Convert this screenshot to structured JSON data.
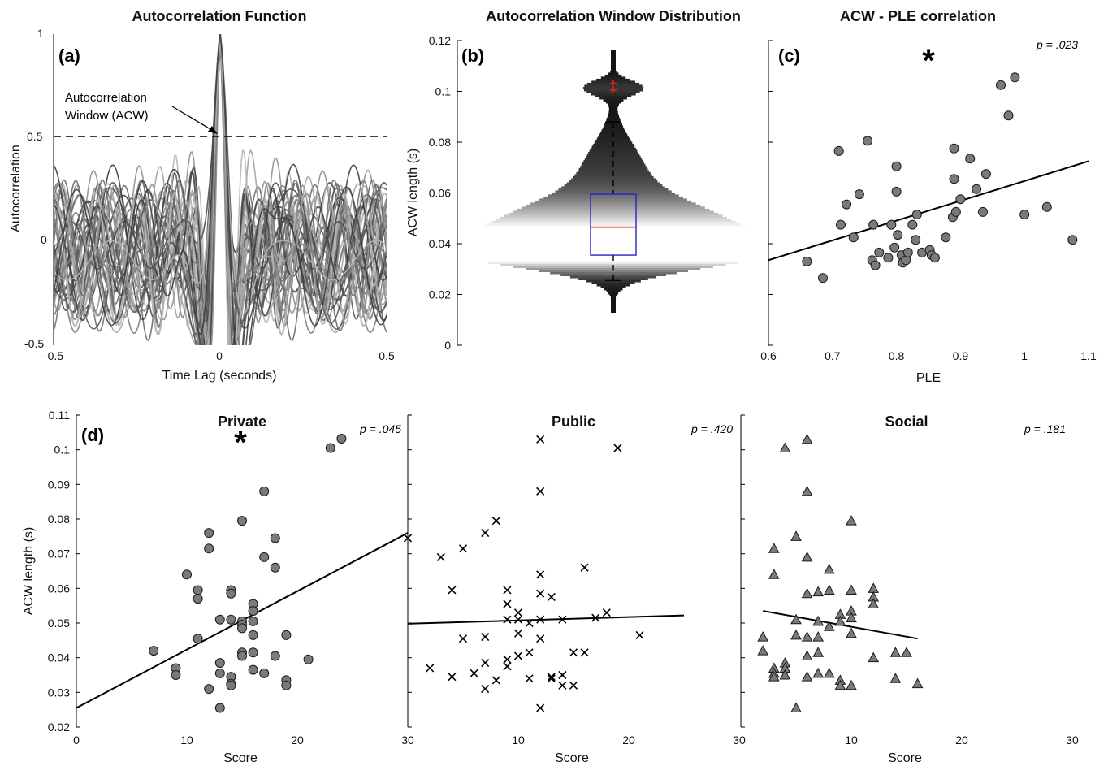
{
  "chart_data": [
    {
      "id": "a",
      "type": "line",
      "panel_label": "(a)",
      "title": "Autocorrelation Function",
      "xlabel": "Time Lag (seconds)",
      "ylabel": "Autocorrelation",
      "xlim": [
        -0.5,
        0.5
      ],
      "ylim": [
        -0.5,
        1
      ],
      "xticks": [
        "-0.5",
        "0",
        "0.5"
      ],
      "yticks": [
        "-0.5",
        "0",
        "0.5",
        "1"
      ],
      "threshold": 0.5,
      "annotation": [
        "Autocorrelation",
        "Window (ACW)"
      ],
      "n_series": 40
    },
    {
      "id": "b",
      "type": "violin",
      "panel_label": "(b)",
      "title": "Autocorrelation Window Distribution",
      "ylabel": "ACW length (s)",
      "ylim": [
        0,
        0.12
      ],
      "yticks": [
        "0",
        "0.02",
        "0.04",
        "0.06",
        "0.08",
        "0.1",
        "0.12"
      ],
      "box": {
        "q1": 0.0355,
        "median": 0.0465,
        "q3": 0.0595,
        "whisker_low": 0.0255,
        "whisker_high": 0.088
      },
      "outliers": [
        0.1005,
        0.1032
      ],
      "density_peaks": [
        0.036,
        0.045
      ]
    },
    {
      "id": "c",
      "type": "scatter",
      "panel_label": "(c)",
      "title": "ACW - PLE correlation",
      "xlabel": "PLE",
      "ylabel": "",
      "xlim": [
        0.6,
        1.1
      ],
      "ylim": [
        0,
        0.12
      ],
      "xticks": [
        "0.6",
        "0.7",
        "0.8",
        "0.9",
        "1",
        "1.1"
      ],
      "p_label": "p = .023",
      "significant": true,
      "fit": [
        [
          0.6,
          0.0335
        ],
        [
          1.1,
          0.0725
        ]
      ],
      "points": [
        [
          0.66,
          0.033
        ],
        [
          0.685,
          0.0265
        ],
        [
          0.71,
          0.0765
        ],
        [
          0.713,
          0.0475
        ],
        [
          0.722,
          0.0555
        ],
        [
          0.733,
          0.0425
        ],
        [
          0.742,
          0.0595
        ],
        [
          0.755,
          0.0805
        ],
        [
          0.762,
          0.0335
        ],
        [
          0.764,
          0.0475
        ],
        [
          0.767,
          0.0315
        ],
        [
          0.773,
          0.0365
        ],
        [
          0.787,
          0.0345
        ],
        [
          0.792,
          0.0475
        ],
        [
          0.797,
          0.0385
        ],
        [
          0.8,
          0.0605
        ],
        [
          0.8,
          0.0705
        ],
        [
          0.802,
          0.0435
        ],
        [
          0.808,
          0.0355
        ],
        [
          0.81,
          0.0325
        ],
        [
          0.815,
          0.0335
        ],
        [
          0.818,
          0.0365
        ],
        [
          0.825,
          0.0475
        ],
        [
          0.83,
          0.0415
        ],
        [
          0.832,
          0.0515
        ],
        [
          0.84,
          0.0365
        ],
        [
          0.852,
          0.0375
        ],
        [
          0.855,
          0.0355
        ],
        [
          0.86,
          0.0345
        ],
        [
          0.877,
          0.0425
        ],
        [
          0.888,
          0.0505
        ],
        [
          0.89,
          0.0655
        ],
        [
          0.89,
          0.0775
        ],
        [
          0.893,
          0.0525
        ],
        [
          0.9,
          0.0575
        ],
        [
          0.915,
          0.0735
        ],
        [
          0.925,
          0.0615
        ],
        [
          0.935,
          0.0525
        ],
        [
          0.94,
          0.0675
        ],
        [
          0.963,
          0.1025
        ],
        [
          0.975,
          0.0905
        ],
        [
          0.985,
          0.1055
        ],
        [
          1.0,
          0.0515
        ],
        [
          1.035,
          0.0545
        ],
        [
          1.075,
          0.0415
        ]
      ]
    },
    {
      "id": "d_private",
      "type": "scatter",
      "panel_label": "(d)",
      "title": "Private",
      "xlabel": "Score",
      "ylabel": "ACW length (s)",
      "xlim": [
        0,
        30
      ],
      "ylim": [
        0.02,
        0.11
      ],
      "xticks": [
        "0",
        "10",
        "20",
        "30"
      ],
      "yticks": [
        "0.02",
        "0.03",
        "0.04",
        "0.05",
        "0.06",
        "0.07",
        "0.08",
        "0.09",
        "0.1",
        "0.11"
      ],
      "p_label": "p = .045",
      "significant": true,
      "marker": "circle",
      "fit": [
        [
          0,
          0.0255
        ],
        [
          30,
          0.076
        ]
      ],
      "points": [
        [
          7,
          0.042
        ],
        [
          9,
          0.037
        ],
        [
          9,
          0.035
        ],
        [
          10,
          0.064
        ],
        [
          11,
          0.0595
        ],
        [
          11,
          0.057
        ],
        [
          11,
          0.0455
        ],
        [
          12,
          0.076
        ],
        [
          12,
          0.0715
        ],
        [
          12,
          0.031
        ],
        [
          13,
          0.051
        ],
        [
          13,
          0.0385
        ],
        [
          13,
          0.0355
        ],
        [
          13,
          0.0255
        ],
        [
          14,
          0.0595
        ],
        [
          14,
          0.0585
        ],
        [
          14,
          0.051
        ],
        [
          14,
          0.0345
        ],
        [
          14,
          0.0325
        ],
        [
          14,
          0.032
        ],
        [
          15,
          0.0795
        ],
        [
          15,
          0.0505
        ],
        [
          15,
          0.0495
        ],
        [
          15,
          0.0485
        ],
        [
          15,
          0.0415
        ],
        [
          15,
          0.0405
        ],
        [
          16,
          0.0555
        ],
        [
          16,
          0.0535
        ],
        [
          16,
          0.0505
        ],
        [
          16,
          0.0465
        ],
        [
          16,
          0.0415
        ],
        [
          16,
          0.0365
        ],
        [
          17,
          0.088
        ],
        [
          17,
          0.069
        ],
        [
          17,
          0.0355
        ],
        [
          18,
          0.0745
        ],
        [
          18,
          0.066
        ],
        [
          18,
          0.0405
        ],
        [
          19,
          0.0465
        ],
        [
          19,
          0.0335
        ],
        [
          19,
          0.032
        ],
        [
          21,
          0.0395
        ],
        [
          23,
          0.1005
        ],
        [
          24,
          0.1032
        ]
      ]
    },
    {
      "id": "d_public",
      "type": "scatter",
      "title": "Public",
      "xlabel": "Score",
      "xlim": [
        0,
        30
      ],
      "ylim": [
        0.02,
        0.11
      ],
      "xticks": [
        "0",
        "10",
        "20",
        "30"
      ],
      "p_label": "p = .420",
      "significant": false,
      "marker": "x",
      "fit": [
        [
          0,
          0.0498
        ],
        [
          25,
          0.0522
        ]
      ],
      "points": [
        [
          0,
          0.0745
        ],
        [
          2,
          0.037
        ],
        [
          3,
          0.069
        ],
        [
          4,
          0.0595
        ],
        [
          4,
          0.0345
        ],
        [
          5,
          0.0715
        ],
        [
          5,
          0.0455
        ],
        [
          6,
          0.0355
        ],
        [
          7,
          0.076
        ],
        [
          7,
          0.046
        ],
        [
          7,
          0.0385
        ],
        [
          7,
          0.031
        ],
        [
          8,
          0.0795
        ],
        [
          8,
          0.0335
        ],
        [
          9,
          0.0595
        ],
        [
          9,
          0.0555
        ],
        [
          9,
          0.051
        ],
        [
          9,
          0.0395
        ],
        [
          9,
          0.0375
        ],
        [
          10,
          0.053
        ],
        [
          10,
          0.051
        ],
        [
          10,
          0.047
        ],
        [
          10,
          0.0405
        ],
        [
          11,
          0.05
        ],
        [
          11,
          0.0415
        ],
        [
          11,
          0.034
        ],
        [
          12,
          0.103
        ],
        [
          12,
          0.088
        ],
        [
          12,
          0.064
        ],
        [
          12,
          0.0585
        ],
        [
          12,
          0.051
        ],
        [
          12,
          0.0455
        ],
        [
          12,
          0.0255
        ],
        [
          13,
          0.0575
        ],
        [
          13,
          0.0345
        ],
        [
          13,
          0.034
        ],
        [
          14,
          0.051
        ],
        [
          14,
          0.035
        ],
        [
          14,
          0.032
        ],
        [
          15,
          0.0415
        ],
        [
          15,
          0.032
        ],
        [
          16,
          0.066
        ],
        [
          16,
          0.0415
        ],
        [
          17,
          0.0515
        ],
        [
          18,
          0.053
        ],
        [
          19,
          0.1005
        ],
        [
          21,
          0.0465
        ]
      ]
    },
    {
      "id": "d_social",
      "type": "scatter",
      "title": "Social",
      "xlabel": "Score",
      "xlim": [
        0,
        30
      ],
      "ylim": [
        0.02,
        0.11
      ],
      "xticks": [
        "0",
        "10",
        "20",
        "30"
      ],
      "p_label": "p = .181",
      "significant": false,
      "marker": "triangle",
      "fit": [
        [
          2,
          0.0535
        ],
        [
          16,
          0.0455
        ]
      ],
      "points": [
        [
          2,
          0.046
        ],
        [
          2,
          0.042
        ],
        [
          3,
          0.0715
        ],
        [
          3,
          0.064
        ],
        [
          3,
          0.037
        ],
        [
          3,
          0.0355
        ],
        [
          3,
          0.0345
        ],
        [
          4,
          0.1005
        ],
        [
          4,
          0.0385
        ],
        [
          4,
          0.037
        ],
        [
          4,
          0.035
        ],
        [
          5,
          0.075
        ],
        [
          5,
          0.051
        ],
        [
          5,
          0.0465
        ],
        [
          5,
          0.0255
        ],
        [
          6,
          0.103
        ],
        [
          6,
          0.088
        ],
        [
          6,
          0.069
        ],
        [
          6,
          0.0585
        ],
        [
          6,
          0.046
        ],
        [
          6,
          0.0405
        ],
        [
          6,
          0.0345
        ],
        [
          7,
          0.059
        ],
        [
          7,
          0.0505
        ],
        [
          7,
          0.046
        ],
        [
          7,
          0.0415
        ],
        [
          7,
          0.0355
        ],
        [
          8,
          0.0655
        ],
        [
          8,
          0.0595
        ],
        [
          8,
          0.049
        ],
        [
          8,
          0.0355
        ],
        [
          9,
          0.0525
        ],
        [
          9,
          0.0505
        ],
        [
          9,
          0.0335
        ],
        [
          9,
          0.032
        ],
        [
          10,
          0.0795
        ],
        [
          10,
          0.0595
        ],
        [
          10,
          0.0535
        ],
        [
          10,
          0.0515
        ],
        [
          10,
          0.047
        ],
        [
          10,
          0.032
        ],
        [
          12,
          0.06
        ],
        [
          12,
          0.0575
        ],
        [
          12,
          0.0555
        ],
        [
          12,
          0.04
        ],
        [
          14,
          0.0415
        ],
        [
          14,
          0.034
        ],
        [
          15,
          0.0415
        ],
        [
          16,
          0.0325
        ]
      ]
    }
  ]
}
